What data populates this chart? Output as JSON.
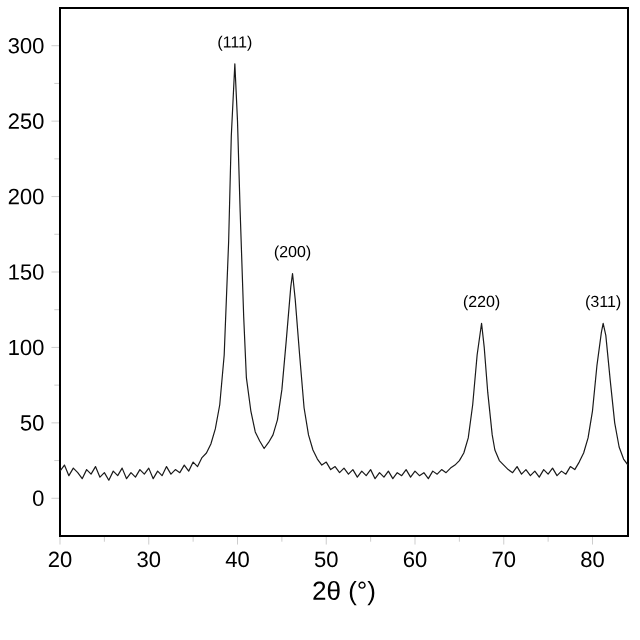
{
  "chart_data": {
    "type": "line",
    "xlabel": "2θ (°)",
    "x": [
      20,
      20.5,
      21,
      21.5,
      22,
      22.5,
      23,
      23.5,
      24,
      24.5,
      25,
      25.5,
      26,
      26.5,
      27,
      27.5,
      28,
      28.5,
      29,
      29.5,
      30,
      30.5,
      31,
      31.5,
      32,
      32.5,
      33,
      33.5,
      34,
      34.5,
      35,
      35.5,
      36,
      36.5,
      37,
      37.5,
      38,
      38.5,
      39,
      39.3,
      39.7,
      40.0,
      40.3,
      40.7,
      41,
      41.5,
      42,
      42.5,
      43,
      43.5,
      44,
      44.5,
      45,
      45.5,
      46,
      46.2,
      46.5,
      47,
      47.5,
      48,
      48.5,
      49,
      49.5,
      50,
      50.5,
      51,
      51.5,
      52,
      52.5,
      53,
      53.5,
      54,
      54.5,
      55,
      55.5,
      56,
      56.5,
      57,
      57.5,
      58,
      58.5,
      59,
      59.5,
      60,
      60.5,
      61,
      61.5,
      62,
      62.5,
      63,
      63.5,
      64,
      64.5,
      65,
      65.5,
      66,
      66.5,
      67,
      67.5,
      67.8,
      68.2,
      68.7,
      69,
      69.5,
      70,
      70.5,
      71,
      71.5,
      72,
      72.5,
      73,
      73.5,
      74,
      74.5,
      75,
      75.5,
      76,
      76.5,
      77,
      77.5,
      78,
      78.5,
      79,
      79.5,
      80,
      80.5,
      81,
      81.2,
      81.5,
      82,
      82.5,
      83,
      83.5,
      84
    ],
    "series": [
      {
        "color": "#1a1a1a",
        "values": [
          18,
          22,
          15,
          20,
          17,
          13,
          19,
          16,
          21,
          14,
          17,
          12,
          18,
          15,
          20,
          13,
          17,
          14,
          19,
          16,
          20,
          13,
          18,
          15,
          21,
          16,
          19,
          17,
          22,
          18,
          24,
          21,
          27,
          30,
          36,
          46,
          62,
          95,
          170,
          240,
          288,
          250,
          190,
          120,
          80,
          58,
          44,
          38,
          33,
          37,
          42,
          52,
          72,
          105,
          140,
          149,
          132,
          95,
          60,
          42,
          32,
          26,
          22,
          24,
          19,
          21,
          17,
          20,
          16,
          19,
          14,
          18,
          15,
          19,
          13,
          17,
          14,
          18,
          13,
          17,
          15,
          19,
          14,
          18,
          15,
          17,
          13,
          18,
          16,
          19,
          17,
          20,
          22,
          25,
          30,
          40,
          62,
          95,
          116,
          100,
          70,
          42,
          32,
          25,
          22,
          19,
          17,
          21,
          16,
          19,
          15,
          18,
          14,
          19,
          16,
          20,
          15,
          18,
          16,
          21,
          19,
          24,
          30,
          40,
          58,
          88,
          110,
          116,
          108,
          78,
          50,
          34,
          26,
          22
        ]
      }
    ],
    "xlim": [
      20,
      84
    ],
    "ylim": [
      -25,
      325
    ],
    "xticks": [
      20,
      30,
      40,
      50,
      60,
      70,
      80
    ],
    "yticks": [
      0,
      50,
      100,
      150,
      200,
      250,
      300
    ],
    "annotations": [
      {
        "text": "(111)",
        "x": 39.7,
        "y": 288
      },
      {
        "text": "(200)",
        "x": 46.2,
        "y": 149
      },
      {
        "text": "(220)",
        "x": 67.5,
        "y": 116
      },
      {
        "text": "(311)",
        "x": 81.2,
        "y": 116
      }
    ]
  }
}
